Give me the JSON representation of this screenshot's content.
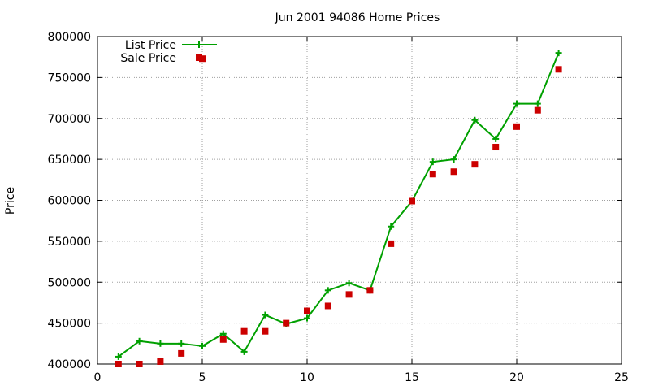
{
  "chart_data": {
    "type": "line",
    "title": "Jun 2001 94086 Home Prices",
    "xlabel": "",
    "ylabel": "Price",
    "xlim": [
      0,
      25
    ],
    "ylim": [
      400000,
      800000
    ],
    "xticks": [
      0,
      5,
      10,
      15,
      20,
      25
    ],
    "yticks": [
      400000,
      450000,
      500000,
      550000,
      600000,
      650000,
      700000,
      750000,
      800000
    ],
    "grid": true,
    "legend_position": "top-left",
    "series": [
      {
        "name": "List Price",
        "style": "line-with-plus-markers",
        "color": "#00a000",
        "x": [
          1,
          2,
          3,
          4,
          5,
          6,
          7,
          8,
          9,
          10,
          11,
          12,
          13,
          14,
          15,
          16,
          17,
          18,
          19,
          20,
          21,
          22
        ],
        "values": [
          409000,
          428000,
          425000,
          425000,
          422000,
          437000,
          415000,
          460000,
          449000,
          456000,
          490000,
          499000,
          490000,
          568000,
          599000,
          647000,
          650000,
          698000,
          675000,
          718000,
          718000,
          780000
        ]
      },
      {
        "name": "Sale Price",
        "style": "square-markers",
        "color": "#cc0000",
        "x": [
          1,
          2,
          3,
          4,
          5,
          6,
          7,
          8,
          9,
          10,
          11,
          12,
          13,
          14,
          15,
          16,
          17,
          18,
          19,
          20,
          21,
          22
        ],
        "values": [
          400000,
          400000,
          403000,
          413000,
          773000,
          430000,
          440000,
          440000,
          450000,
          465000,
          471000,
          485000,
          490000,
          547000,
          599000,
          632000,
          635000,
          644000,
          665000,
          690000,
          710000,
          760000
        ]
      }
    ]
  }
}
